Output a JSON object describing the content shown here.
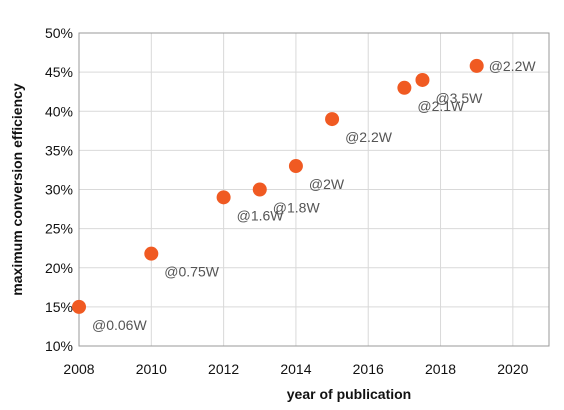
{
  "chart_data": {
    "type": "scatter",
    "xlabel": "year of publication",
    "ylabel": "maximum conversion efficiency",
    "xlim": [
      2008,
      2021
    ],
    "ylim": [
      10,
      50
    ],
    "x_ticks": [
      2008,
      2010,
      2012,
      2014,
      2016,
      2018,
      2020
    ],
    "y_ticks": [
      10,
      15,
      20,
      25,
      30,
      35,
      40,
      45,
      50
    ],
    "y_tick_labels": [
      "10%",
      "15%",
      "20%",
      "25%",
      "30%",
      "35%",
      "40%",
      "45%",
      "50%"
    ],
    "grid": true,
    "legend": "none",
    "point_color": "#f05a22",
    "points": [
      {
        "x": 2008,
        "y": 15,
        "label": "@0.06W"
      },
      {
        "x": 2010,
        "y": 21.8,
        "label": "@0.75W"
      },
      {
        "x": 2012,
        "y": 29,
        "label": "@1.6W"
      },
      {
        "x": 2013,
        "y": 30,
        "label": "@1.8W"
      },
      {
        "x": 2014,
        "y": 33,
        "label": "@2W"
      },
      {
        "x": 2015,
        "y": 39,
        "label": "@2.2W"
      },
      {
        "x": 2017,
        "y": 43,
        "label": "@2.1W"
      },
      {
        "x": 2017.5,
        "y": 44,
        "label": "@3.5W"
      },
      {
        "x": 2019,
        "y": 45.8,
        "label": "@2.2W"
      }
    ]
  }
}
